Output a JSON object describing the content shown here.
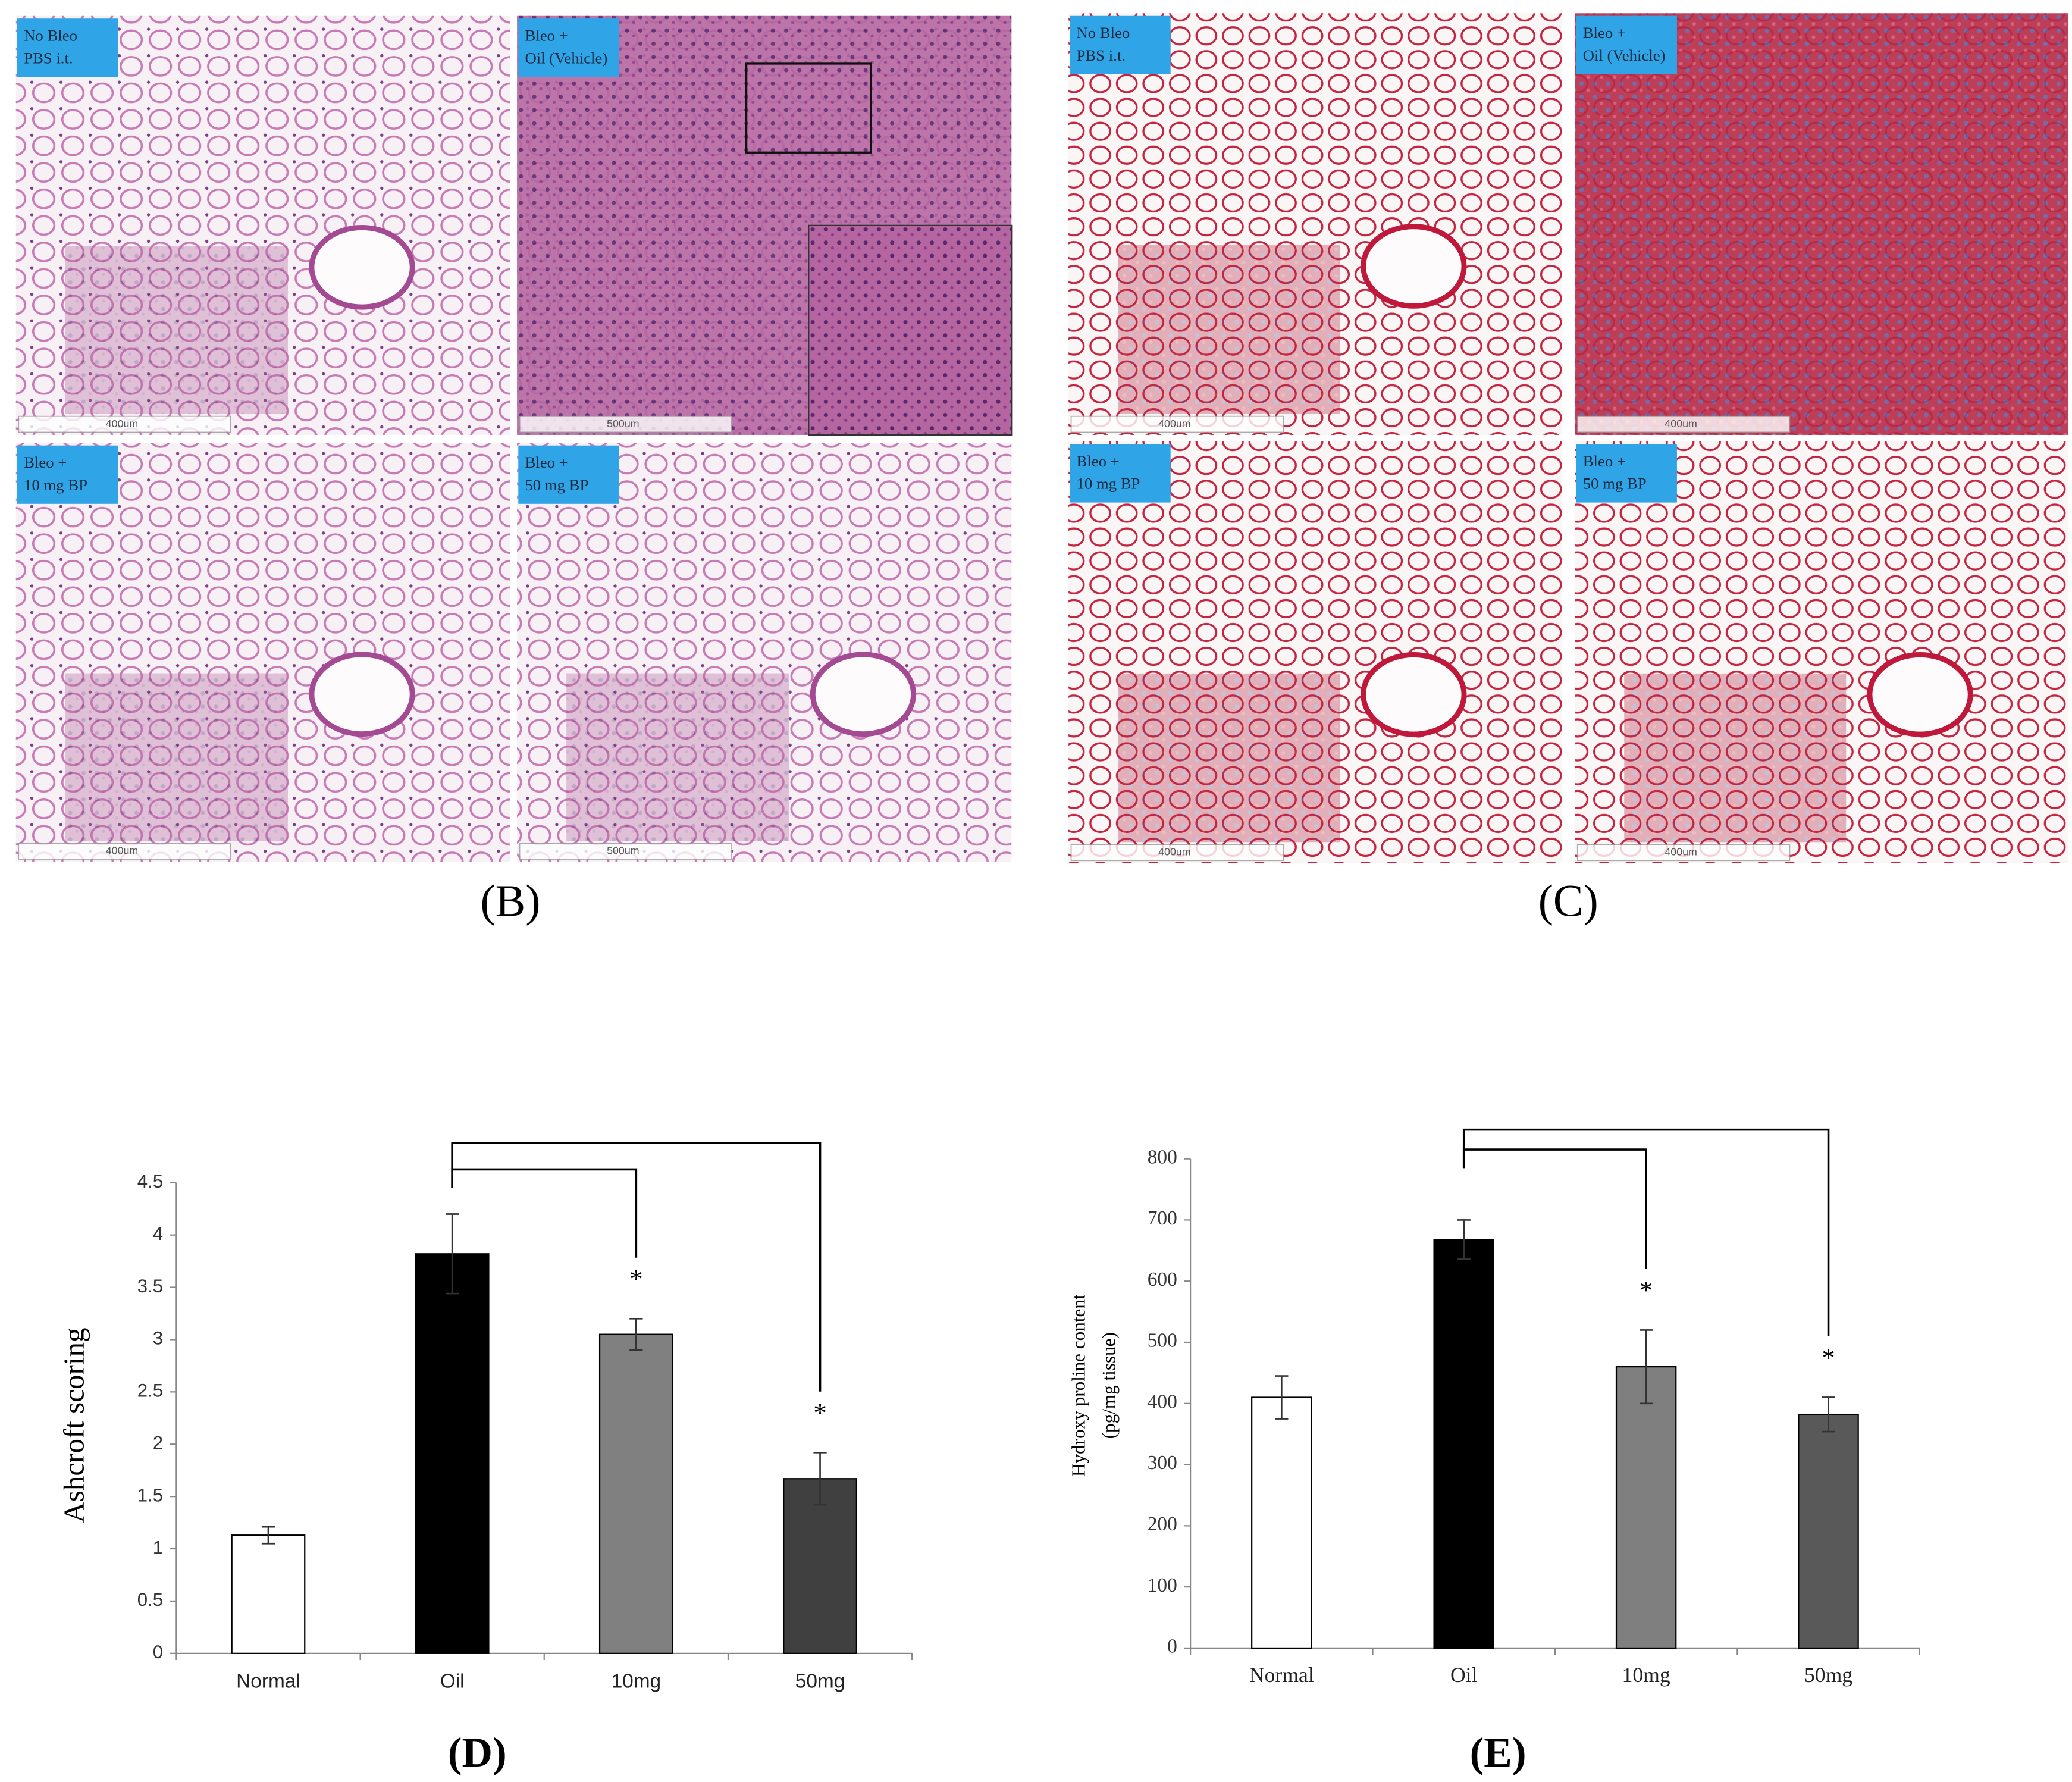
{
  "panels": {
    "B": {
      "caption": "(B)",
      "images": [
        {
          "label": [
            "No Bleo",
            "PBS i.t."
          ],
          "scale": "400um"
        },
        {
          "label": [
            "Bleo +",
            "Oil (Vehicle)"
          ],
          "scale": "500um"
        },
        {
          "label": [
            "Bleo +",
            "10 mg BP"
          ],
          "scale": "400um"
        },
        {
          "label": [
            "Bleo +",
            "50 mg BP"
          ],
          "scale": "500um"
        }
      ]
    },
    "C": {
      "caption": "(C)",
      "images": [
        {
          "label": [
            "No Bleo",
            "PBS i.t."
          ],
          "scale": "400um"
        },
        {
          "label": [
            "Bleo +",
            "Oil (Vehicle)"
          ],
          "scale": "400um"
        },
        {
          "label": [
            "Bleo +",
            "10 mg BP"
          ],
          "scale": "400um"
        },
        {
          "label": [
            "Bleo +",
            "50 mg BP"
          ],
          "scale": "400um"
        }
      ]
    }
  },
  "chart_data": [
    {
      "type": "bar",
      "caption": "(D)",
      "ylabel": [
        "Ashcroft scoring"
      ],
      "categories": [
        "Normal",
        "Oil",
        "10mg",
        "50mg"
      ],
      "values": [
        1.13,
        3.82,
        3.05,
        1.67
      ],
      "errors": [
        0.08,
        0.38,
        0.15,
        0.25
      ],
      "colors": [
        "#ffffff",
        "#000000",
        "#808080",
        "#404040"
      ],
      "significance": [
        null,
        null,
        "*",
        "*"
      ],
      "ylim": [
        0,
        4.5
      ],
      "yticks": [
        0,
        0.5,
        1,
        1.5,
        2,
        2.5,
        3,
        3.5,
        4,
        4.5
      ],
      "grid": false
    },
    {
      "type": "bar",
      "caption": "(E)",
      "ylabel": [
        "Hydroxy proline content",
        "(pg/mg tissue)"
      ],
      "categories": [
        "Normal",
        "Oil",
        "10mg",
        "50mg"
      ],
      "values": [
        410,
        668,
        460,
        382
      ],
      "errors": [
        35,
        32,
        60,
        28
      ],
      "colors": [
        "#ffffff",
        "#000000",
        "#7f7f7f",
        "#595959"
      ],
      "significance": [
        null,
        null,
        "*",
        "*"
      ],
      "ylim": [
        0,
        800
      ],
      "yticks": [
        0,
        100,
        200,
        300,
        400,
        500,
        600,
        700,
        800
      ],
      "grid": false
    }
  ]
}
